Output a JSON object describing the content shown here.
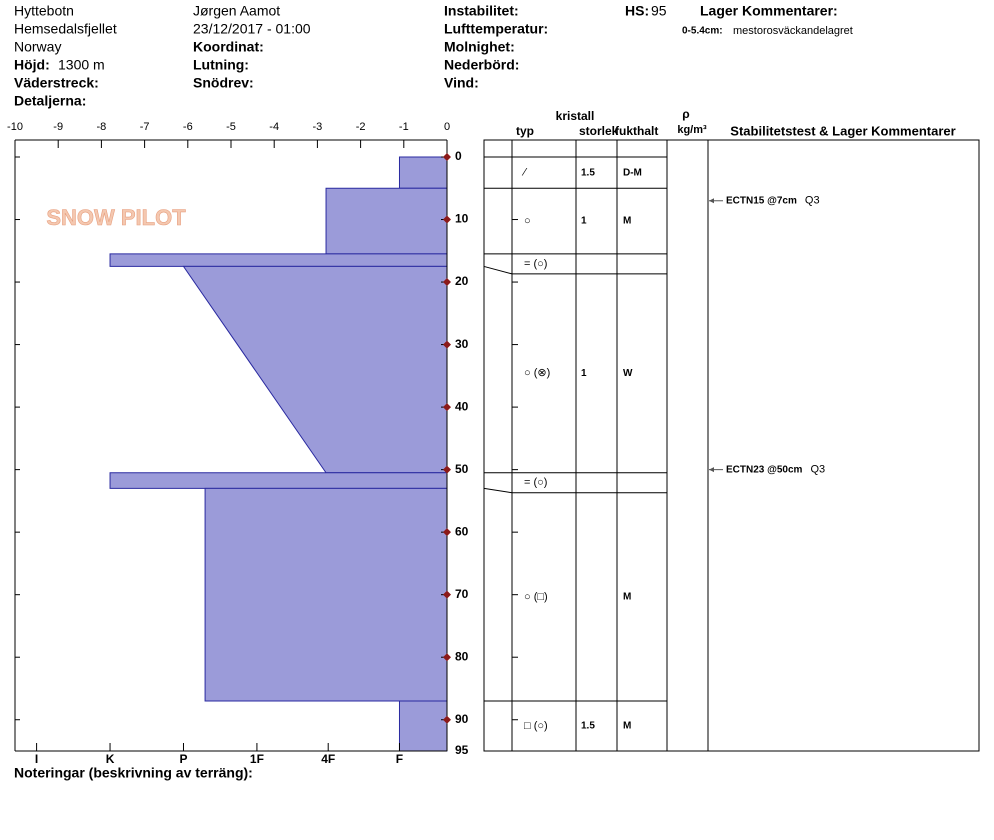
{
  "header": {
    "site": "Hyttebotn",
    "area": "Hemsedalsfjellet",
    "country": "Norway",
    "elevation_label": "Höjd:",
    "elevation": "1300 m",
    "aspect_label": "Väderstreck:",
    "details_label": "Detaljerna:",
    "observer": "Jørgen Aamot",
    "datetime": "23/12/2017 - 01:00",
    "coord_label": "Koordinat:",
    "slope_label": "Lutning:",
    "wind_loading_label": "Snödrev:",
    "instability_label": "Instabilitet:",
    "air_temp_label": "Lufttemperatur:",
    "sky_label": "Molnighet:",
    "precip_label": "Nederbörd:",
    "wind_label": "Vind:",
    "hs_label": "HS:",
    "hs": 95,
    "layer_comments_title": "Lager Kommentarer:",
    "layer_comment_range": "0-5.4cm:",
    "layer_comment": "mestorosväckandelagret"
  },
  "logo": "SNOW PILOT",
  "notes_label": "Noteringar (beskrivning av terräng):",
  "chart_data": {
    "type": "snow-profile",
    "color": "#9b9bd9",
    "xlim": [
      -10,
      0
    ],
    "xticks": [
      -10,
      -9,
      -8,
      -7,
      -6,
      -5,
      -4,
      -3,
      -2,
      -1,
      0
    ],
    "hardness_ticks": [
      {
        "value": -9.5,
        "label": "I"
      },
      {
        "value": -7.8,
        "label": "K"
      },
      {
        "value": -6.1,
        "label": "P"
      },
      {
        "value": -4.4,
        "label": "1F"
      },
      {
        "value": -2.75,
        "label": "4F"
      },
      {
        "value": -1.1,
        "label": "F"
      }
    ],
    "ylim": [
      0,
      95
    ],
    "yticks": [
      0,
      10,
      20,
      30,
      40,
      50,
      60,
      70,
      80,
      90,
      95
    ],
    "table_headers": {
      "crystal": "kristall",
      "type": "typ",
      "size": "storlek",
      "moisture": "fukthalt",
      "density": "ρ",
      "density_unit": "kg/m³",
      "comments": "Stabilitetstest & Lager Kommentarer"
    },
    "layers": [
      {
        "top": 0,
        "bottom": 5,
        "hardness_top": -1.1,
        "hardness_bottom": -1.1,
        "grain_type": "⁄",
        "grain_size": 1.5,
        "moisture": "D-M"
      },
      {
        "top": 5,
        "bottom": 15.5,
        "hardness_top": -2.8,
        "hardness_bottom": -2.8,
        "grain_type": "○",
        "grain_size": 1,
        "moisture": "M"
      },
      {
        "top": 15.5,
        "bottom": 17.5,
        "hardness_top": -7.8,
        "hardness_bottom": -7.8,
        "grain_type": "= (○)"
      },
      {
        "top": 17.5,
        "bottom": 50.5,
        "hardness_top": -6.1,
        "hardness_bottom": -2.8,
        "grain_type": "○ (⊗)",
        "grain_size": 1,
        "moisture": "W"
      },
      {
        "top": 50.5,
        "bottom": 53,
        "hardness_top": -7.8,
        "hardness_bottom": -7.8,
        "grain_type": "= (○)"
      },
      {
        "top": 53,
        "bottom": 87,
        "hardness_top": -5.6,
        "hardness_bottom": -5.6,
        "grain_type": "○ (□)",
        "moisture": "M"
      },
      {
        "top": 87,
        "bottom": 95,
        "hardness_top": -1.1,
        "hardness_bottom": -1.1,
        "grain_type": "□ (○)",
        "grain_size": 1.5,
        "moisture": "M"
      }
    ],
    "tests": [
      {
        "depth": 7,
        "label": "ECTN15 @7cm",
        "quality": "Q3"
      },
      {
        "depth": 50,
        "label": "ECTN23 @50cm",
        "quality": "Q3"
      }
    ]
  }
}
